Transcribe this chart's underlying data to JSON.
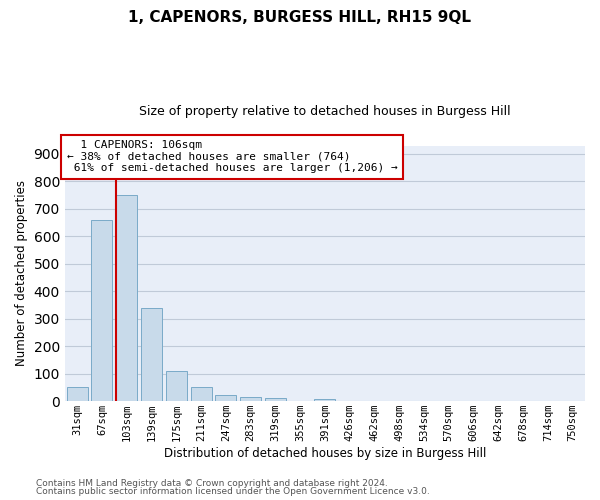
{
  "title": "1, CAPENORS, BURGESS HILL, RH15 9QL",
  "subtitle": "Size of property relative to detached houses in Burgess Hill",
  "xlabel": "Distribution of detached houses by size in Burgess Hill",
  "ylabel": "Number of detached properties",
  "footnote1": "Contains HM Land Registry data © Crown copyright and database right 2024.",
  "footnote2": "Contains public sector information licensed under the Open Government Licence v3.0.",
  "bar_labels": [
    "31sqm",
    "67sqm",
    "103sqm",
    "139sqm",
    "175sqm",
    "211sqm",
    "247sqm",
    "283sqm",
    "319sqm",
    "355sqm",
    "391sqm",
    "426sqm",
    "462sqm",
    "498sqm",
    "534sqm",
    "570sqm",
    "606sqm",
    "642sqm",
    "678sqm",
    "714sqm",
    "750sqm"
  ],
  "bar_values": [
    50,
    660,
    750,
    340,
    108,
    50,
    23,
    14,
    10,
    0,
    8,
    0,
    0,
    0,
    0,
    0,
    0,
    0,
    0,
    0,
    0
  ],
  "bar_color": "#c8daea",
  "bar_edge_color": "#7aaac8",
  "property_label": "1 CAPENORS: 106sqm",
  "pct_smaller": 38,
  "n_smaller": 764,
  "pct_larger_semi": 61,
  "n_larger_semi": 1206,
  "vline_bar_index": 2,
  "annotation_box_color": "#cc0000",
  "ylim": [
    0,
    930
  ],
  "yticks": [
    0,
    100,
    200,
    300,
    400,
    500,
    600,
    700,
    800,
    900
  ],
  "bg_color": "#e8eef8",
  "grid_color": "#c0cad8",
  "title_fontsize": 11,
  "subtitle_fontsize": 9,
  "ylabel_fontsize": 8.5,
  "xlabel_fontsize": 8.5,
  "tick_fontsize": 7.5,
  "annotation_fontsize": 8,
  "footnote_fontsize": 6.5
}
